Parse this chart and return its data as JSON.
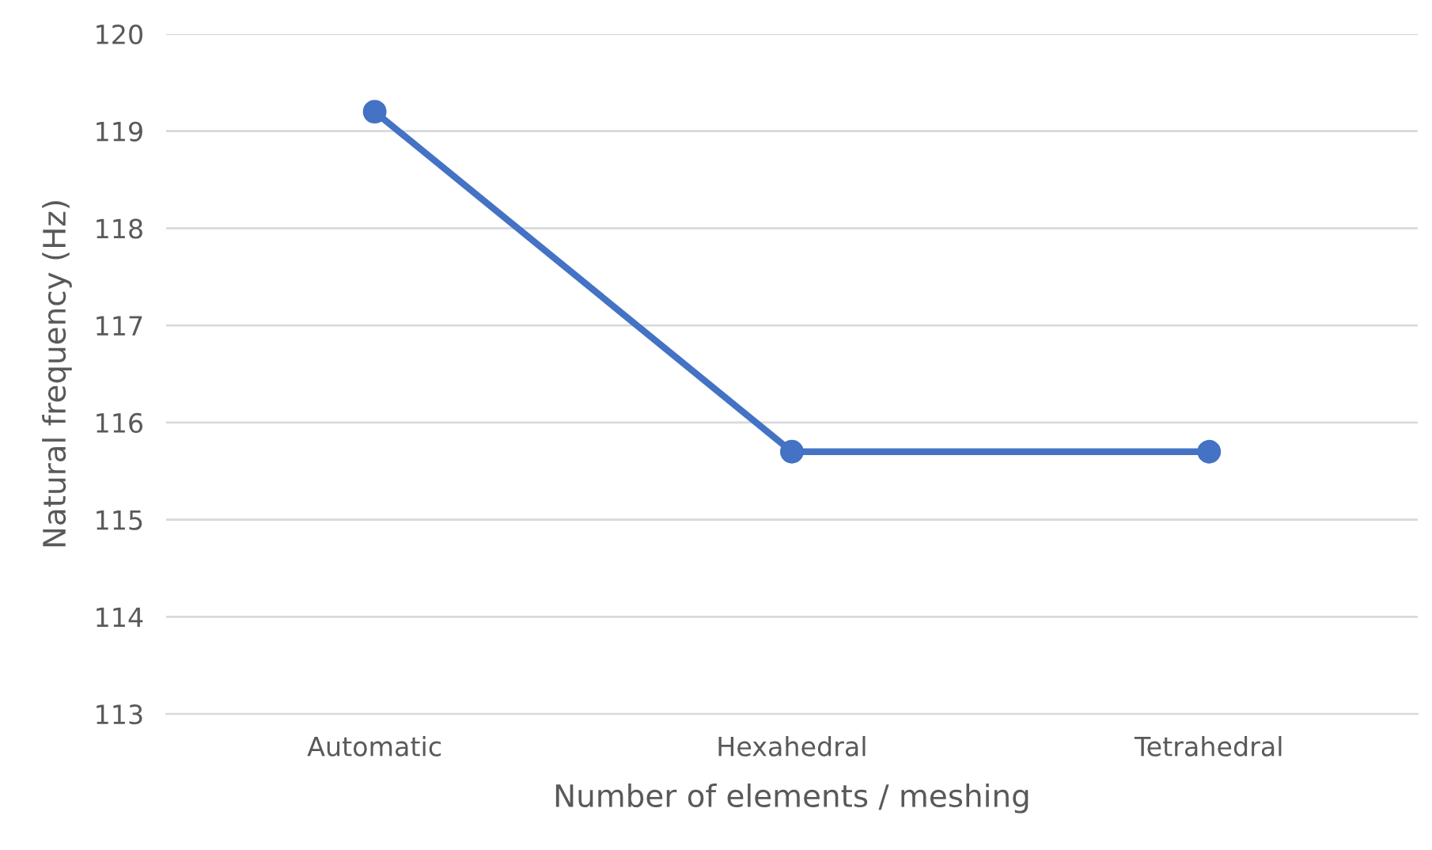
{
  "chart_data": {
    "type": "line",
    "xlabel": "Number of elements / meshing",
    "ylabel": "Natural frequency (Hz)",
    "categories": [
      "Automatic",
      "Hexahedral",
      "Tetrahedral"
    ],
    "series": [
      {
        "color": "#4472c4",
        "values": [
          119.2,
          115.7,
          115.7
        ]
      }
    ],
    "ylim": [
      113,
      120
    ],
    "yticks": [
      113,
      114,
      115,
      116,
      117,
      118,
      119,
      120
    ],
    "grid": "y",
    "marker": "circle",
    "line_style": "solid"
  }
}
